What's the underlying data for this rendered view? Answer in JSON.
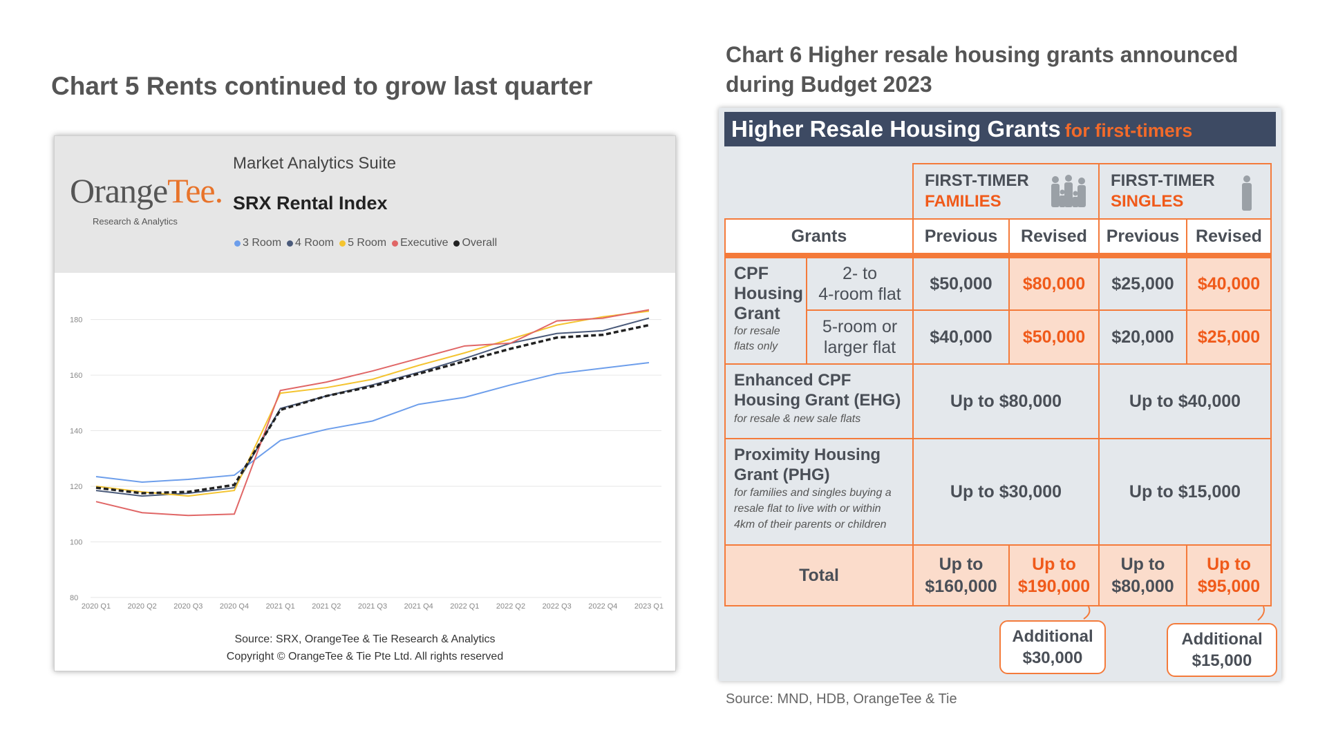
{
  "chart5_title": "Chart 5 Rents continued to grow last quarter",
  "chart6_title_line1": "Chart 6 Higher resale housing grants announced",
  "chart6_title_line2": "during Budget 2023",
  "panel5": {
    "logo_main": "Orange",
    "logo_accent": "Tee.",
    "logo_sub": "Research & Analytics",
    "suite": "Market Analytics Suite",
    "index_title": "SRX Rental Index",
    "source_line1": "Source: SRX, OrangeTee & Tie Research & Analytics",
    "source_line2": "Copyright © OrangeTee & Tie Pte Ltd. All rights reserved"
  },
  "chart_data": {
    "type": "line",
    "title": "SRX Rental Index",
    "categories": [
      "2020 Q1",
      "2020 Q2",
      "2020 Q3",
      "2020 Q4",
      "2021 Q1",
      "2021 Q2",
      "2021 Q3",
      "2021 Q4",
      "2022 Q1",
      "2022 Q2",
      "2022 Q3",
      "2022 Q4",
      "2023 Q1"
    ],
    "yticks": [
      80,
      100,
      120,
      140,
      160,
      180
    ],
    "ylim": [
      80,
      190
    ],
    "grid": true,
    "legend_position": "top",
    "series": [
      {
        "name": "3 Room",
        "color": "#6d9eeb",
        "dashed": false,
        "values": [
          123.5,
          121.5,
          122.5,
          124,
          136.5,
          140.5,
          143.5,
          149.5,
          152,
          156.5,
          160.5,
          162.5,
          164.5
        ]
      },
      {
        "name": "4 Room",
        "color": "#4a5a7a",
        "dashed": false,
        "values": [
          118.5,
          116.5,
          117.5,
          119.5,
          148,
          152.5,
          156.5,
          161,
          166,
          171.5,
          175,
          176,
          180.5
        ]
      },
      {
        "name": "5 Room",
        "color": "#f4c430",
        "dashed": false,
        "values": [
          120,
          118,
          116.5,
          118.5,
          153.5,
          155.5,
          158.5,
          163.5,
          168,
          173,
          178,
          181,
          183
        ]
      },
      {
        "name": "Executive",
        "color": "#e06666",
        "dashed": false,
        "values": [
          114.5,
          110.5,
          109.5,
          110,
          154.5,
          157.5,
          161.5,
          166,
          170.5,
          171.5,
          179.5,
          180.5,
          183.5
        ]
      },
      {
        "name": "Overall",
        "color": "#222222",
        "dashed": true,
        "values": [
          119.5,
          117.5,
          118,
          120.5,
          147.5,
          152.5,
          156,
          160.5,
          165,
          169.5,
          173.5,
          174.5,
          178
        ]
      }
    ]
  },
  "panel6": {
    "banner": "Higher Resale Housing Grants",
    "banner_sub": "for first-timers",
    "families_l1": "FIRST-TIMER",
    "families_l2": "FAMILIES",
    "singles_l1": "FIRST-TIMER",
    "singles_l2": "SINGLES",
    "grants": "Grants",
    "previous": "Previous",
    "revised": "Revised",
    "cpf_l1": "CPF",
    "cpf_l2": "Housing",
    "cpf_l3": "Grant",
    "cpf_note1": "for resale",
    "cpf_note2": "flats only",
    "r1_l1": "2- to",
    "r1_l2": "4-room flat",
    "r2_l1": "5-room or",
    "r2_l2": "larger flat",
    "r1": [
      "$50,000",
      "$80,000",
      "$25,000",
      "$40,000"
    ],
    "r2": [
      "$40,000",
      "$50,000",
      "$20,000",
      "$25,000"
    ],
    "ehg_l1": "Enhanced CPF",
    "ehg_l2": "Housing Grant (EHG)",
    "ehg_note": "for resale & new sale flats",
    "ehg_fam": "Up to $80,000",
    "ehg_sgl": "Up to $40,000",
    "phg_l1": "Proximity Housing",
    "phg_l2": "Grant (PHG)",
    "phg_note1": "for families and singles buying a",
    "phg_note2": "resale flat to live with or within",
    "phg_note3": "4km of their parents or children",
    "phg_fam": "Up to $30,000",
    "phg_sgl": "Up to $15,000",
    "total": "Total",
    "tot_upto": "Up to",
    "tot": [
      "$160,000",
      "$190,000",
      "$80,000",
      "$95,000"
    ],
    "add_label": "Additional",
    "add_fam": "$30,000",
    "add_sgl": "$15,000"
  },
  "source6": "Source: MND, HDB, OrangeTee & Tie"
}
